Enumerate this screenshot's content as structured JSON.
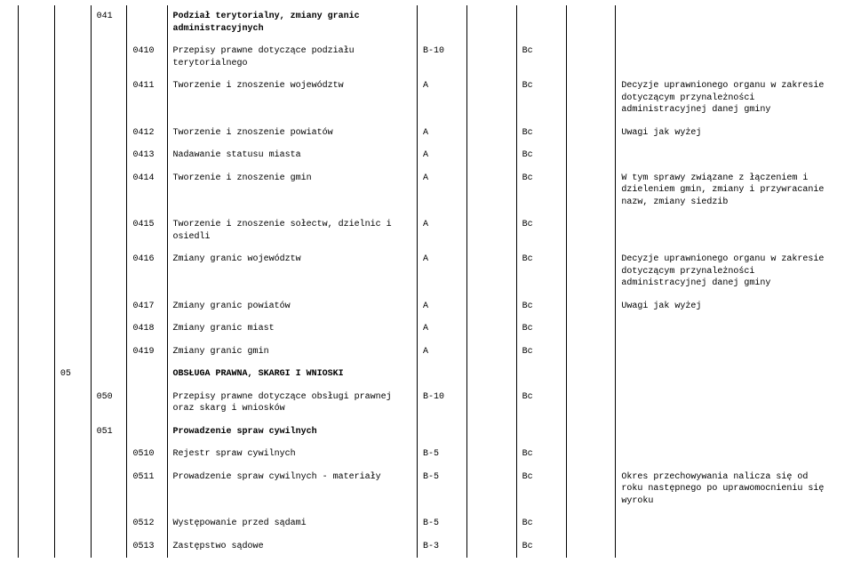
{
  "rows": [
    {
      "c3": "041",
      "c5": "Podział terytorialny, zmiany granic administracyjnych",
      "bold5": true
    },
    {
      "c4": "0410",
      "c5": "Przepisy prawne dotyczące podziału terytorialnego",
      "c6": "B-10",
      "c8": "Bc"
    },
    {
      "c4": "0411",
      "c5": "Tworzenie i znoszenie województw",
      "c6": "A",
      "c8": "Bc",
      "c10": "Decyzje uprawnionego organu w zakresie dotyczącym przynależności administracyjnej danej gminy"
    },
    {
      "c4": "0412",
      "c5": "Tworzenie i znoszenie powiatów",
      "c6": "A",
      "c8": "Bc",
      "c10": "Uwagi jak wyżej"
    },
    {
      "c4": "0413",
      "c5": "Nadawanie statusu miasta",
      "c6": "A",
      "c8": "Bc"
    },
    {
      "c4": "0414",
      "c5": "Tworzenie i znoszenie gmin",
      "c6": "A",
      "c8": "Bc",
      "c10": "W tym sprawy związane z łączeniem i dzieleniem gmin, zmiany i przywracanie nazw, zmiany siedzib"
    },
    {
      "c4": "0415",
      "c5": "Tworzenie i znoszenie sołectw, dzielnic i osiedli",
      "c6": "A",
      "c8": "Bc"
    },
    {
      "c4": "0416",
      "c5": "Zmiany granic województw",
      "c6": "A",
      "c8": "Bc",
      "c10": "Decyzje uprawnionego organu w zakresie dotyczącym przynależności administracyjnej danej gminy"
    },
    {
      "c4": "0417",
      "c5": "Zmiany granic powiatów",
      "c6": "A",
      "c8": "Bc",
      "c10": "Uwagi jak wyżej"
    },
    {
      "c4": "0418",
      "c5": "Zmiany granic miast",
      "c6": "A",
      "c8": "Bc"
    },
    {
      "c4": "0419",
      "c5": "Zmiany granic gmin",
      "c6": "A",
      "c8": "Bc"
    },
    {
      "c2": "05",
      "c5": "OBSŁUGA PRAWNA, SKARGI I WNIOSKI",
      "bold5": true
    },
    {
      "c3": "050",
      "c5": "Przepisy prawne dotyczące obsługi prawnej oraz skarg i wniosków",
      "c6": "B-10",
      "c8": "Bc"
    },
    {
      "c3": "051",
      "c5": "Prowadzenie spraw cywilnych",
      "bold5": true
    },
    {
      "c4": "0510",
      "c5": "Rejestr spraw cywilnych",
      "c6": "B-5",
      "c8": "Bc"
    },
    {
      "c4": "0511",
      "c5": "Prowadzenie spraw cywilnych - materiały",
      "c6": "B-5",
      "c8": "Bc",
      "c10": "Okres przechowywania nalicza się od roku następnego po uprawomocnieniu się wyroku"
    },
    {
      "c4": "0512",
      "c5": "Występowanie przed sądami",
      "c6": "B-5",
      "c8": "Bc"
    },
    {
      "c4": "0513",
      "c5": "Zastępstwo sądowe",
      "c6": "B-3",
      "c8": "Bc"
    }
  ]
}
